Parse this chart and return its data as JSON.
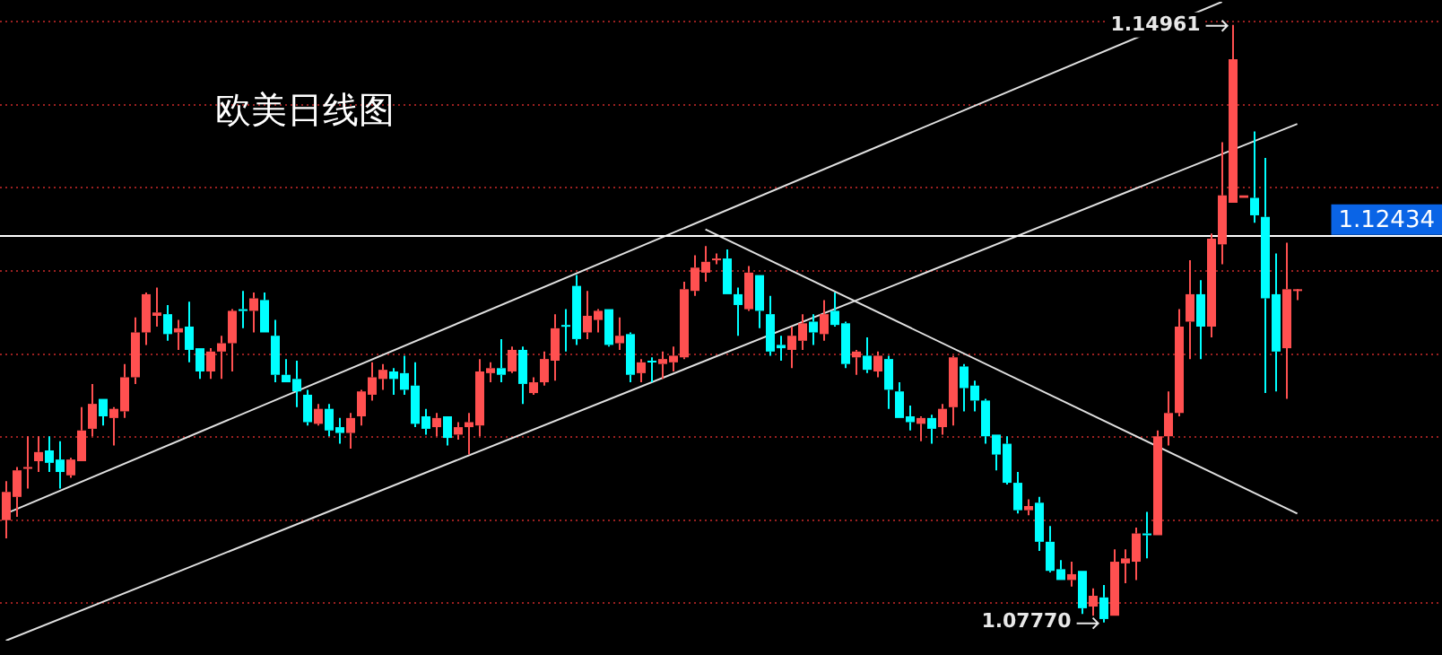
{
  "chart_data": {
    "type": "candlestick",
    "title": "欧美日线图",
    "categories": [
      null,
      null,
      null,
      null,
      null,
      null,
      null,
      null,
      null,
      null,
      null,
      null,
      null,
      null,
      null,
      null,
      null,
      null,
      null,
      null,
      null,
      null,
      null,
      null,
      null,
      null,
      null,
      null,
      null,
      null,
      null,
      null,
      null,
      null,
      null,
      null,
      null,
      null,
      null,
      null,
      null,
      null,
      null,
      null,
      null,
      null,
      null,
      null,
      null,
      null,
      null,
      null,
      null,
      null,
      null,
      null,
      null,
      null,
      null,
      null,
      null,
      null,
      null,
      null,
      null,
      null,
      null,
      null,
      null,
      null,
      null,
      null,
      null,
      null,
      null,
      null,
      null,
      null,
      null,
      null,
      null,
      null,
      null,
      null,
      null,
      null,
      null,
      null,
      null,
      null,
      null,
      null,
      null,
      null,
      null,
      null,
      null,
      null,
      null,
      null,
      null,
      null,
      null,
      null,
      null,
      null,
      null,
      null,
      null,
      null,
      null,
      null,
      null,
      null,
      null,
      null,
      null,
      null,
      null,
      null,
      null
    ],
    "ohlc": [
      [
        1.09,
        1.0947,
        1.0878,
        1.0934
      ],
      [
        1.0928,
        1.0964,
        1.0904,
        1.096
      ],
      [
        1.0962,
        1.1001,
        1.0938,
        1.0964
      ],
      [
        1.0971,
        1.1001,
        1.0958,
        1.0982
      ],
      [
        1.0984,
        1.1001,
        1.0958,
        1.0969
      ],
      [
        1.0973,
        1.0995,
        1.0938,
        1.0958
      ],
      [
        1.0954,
        1.0975,
        1.0951,
        1.0973
      ],
      [
        1.0971,
        1.1036,
        1.0971,
        1.1008
      ],
      [
        1.101,
        1.1064,
        1.1001,
        1.104
      ],
      [
        1.1046,
        1.1046,
        1.1014,
        1.1025
      ],
      [
        1.1023,
        1.1036,
        1.099,
        1.1034
      ],
      [
        1.1031,
        1.1088,
        1.1023,
        1.1072
      ],
      [
        1.1072,
        1.1144,
        1.1064,
        1.1126
      ],
      [
        1.1126,
        1.1174,
        1.1111,
        1.1172
      ],
      [
        1.1146,
        1.118,
        1.1133,
        1.115
      ],
      [
        1.1148,
        1.1159,
        1.1116,
        1.1124
      ],
      [
        1.1126,
        1.1141,
        1.1105,
        1.1131
      ],
      [
        1.1133,
        1.1163,
        1.109,
        1.1105
      ],
      [
        1.1107,
        1.1107,
        1.107,
        1.1079
      ],
      [
        1.1079,
        1.1107,
        1.107,
        1.1103
      ],
      [
        1.1103,
        1.1122,
        1.107,
        1.1113
      ],
      [
        1.1113,
        1.1154,
        1.1079,
        1.1152
      ],
      [
        1.1154,
        1.1176,
        1.1131,
        1.1152
      ],
      [
        1.1152,
        1.1174,
        1.1126,
        1.1167
      ],
      [
        1.1165,
        1.1174,
        1.1126,
        1.1126
      ],
      [
        1.1122,
        1.1141,
        1.1066,
        1.1075
      ],
      [
        1.1075,
        1.1094,
        1.1066,
        1.1066
      ],
      [
        1.107,
        1.1092,
        1.1036,
        1.1055
      ],
      [
        1.1051,
        1.1057,
        1.1014,
        1.1018
      ],
      [
        1.1016,
        1.104,
        1.1014,
        1.1034
      ],
      [
        1.1034,
        1.104,
        1.1001,
        1.1008
      ],
      [
        1.1012,
        1.1023,
        1.0992,
        1.1005
      ],
      [
        1.1005,
        1.1029,
        1.0986,
        1.1023
      ],
      [
        1.1025,
        1.1057,
        1.1014,
        1.1055
      ],
      [
        1.1051,
        1.109,
        1.1044,
        1.1072
      ],
      [
        1.107,
        1.1088,
        1.1057,
        1.1081
      ],
      [
        1.1079,
        1.1083,
        1.1051,
        1.107
      ],
      [
        1.1077,
        1.1098,
        1.1051,
        1.1057
      ],
      [
        1.1062,
        1.109,
        1.1012,
        1.1016
      ],
      [
        1.1025,
        1.1034,
        1.1003,
        1.101
      ],
      [
        1.1012,
        1.1029,
        1.1001,
        1.1023
      ],
      [
        1.1025,
        1.1025,
        1.099,
        1.0999
      ],
      [
        1.1003,
        1.1018,
        1.0997,
        1.1012
      ],
      [
        1.1012,
        1.1029,
        1.0979,
        1.1018
      ],
      [
        1.1014,
        1.1094,
        1.1001,
        1.1079
      ],
      [
        1.1077,
        1.109,
        1.1066,
        1.1083
      ],
      [
        1.1083,
        1.1118,
        1.1066,
        1.1075
      ],
      [
        1.1079,
        1.1109,
        1.1077,
        1.1105
      ],
      [
        1.1105,
        1.1109,
        1.104,
        1.1064
      ],
      [
        1.1053,
        1.1072,
        1.1051,
        1.1066
      ],
      [
        1.1066,
        1.1103,
        1.1062,
        1.1094
      ],
      [
        1.1092,
        1.1148,
        1.1068,
        1.1131
      ],
      [
        1.1135,
        1.1154,
        1.1103,
        1.1133
      ],
      [
        1.1182,
        1.1195,
        1.1111,
        1.1118
      ],
      [
        1.1126,
        1.1176,
        1.1118,
        1.1146
      ],
      [
        1.1141,
        1.1154,
        1.1126,
        1.1152
      ],
      [
        1.1154,
        1.1154,
        1.1109,
        1.1111
      ],
      [
        1.1113,
        1.1144,
        1.1105,
        1.1122
      ],
      [
        1.1124,
        1.1126,
        1.1066,
        1.1075
      ],
      [
        1.1077,
        1.1094,
        1.1066,
        1.109
      ],
      [
        1.1092,
        1.1096,
        1.1066,
        1.109
      ],
      [
        1.1088,
        1.1103,
        1.107,
        1.1094
      ],
      [
        1.109,
        1.1109,
        1.1079,
        1.1098
      ],
      [
        1.1096,
        1.1187,
        1.1094,
        1.1178
      ],
      [
        1.1176,
        1.1219,
        1.117,
        1.1204
      ],
      [
        1.1198,
        1.123,
        1.1187,
        1.1211
      ],
      [
        1.1213,
        1.1221,
        1.1208,
        1.1215
      ],
      [
        1.1215,
        1.1226,
        1.1172,
        1.1172
      ],
      [
        1.1172,
        1.118,
        1.1122,
        1.1159
      ],
      [
        1.1154,
        1.1206,
        1.1152,
        1.1198
      ],
      [
        1.1195,
        1.1195,
        1.1131,
        1.1152
      ],
      [
        1.1148,
        1.117,
        1.1098,
        1.1103
      ],
      [
        1.1111,
        1.1122,
        1.1092,
        1.1107
      ],
      [
        1.1105,
        1.1133,
        1.1083,
        1.1122
      ],
      [
        1.1116,
        1.1148,
        1.1105,
        1.1137
      ],
      [
        1.1139,
        1.1148,
        1.1111,
        1.1126
      ],
      [
        1.1124,
        1.1165,
        1.1116,
        1.1148
      ],
      [
        1.1152,
        1.1174,
        1.1133,
        1.1135
      ],
      [
        1.1137,
        1.1139,
        1.1083,
        1.1088
      ],
      [
        1.1096,
        1.1105,
        1.1075,
        1.1103
      ],
      [
        1.1098,
        1.112,
        1.1077,
        1.1081
      ],
      [
        1.1079,
        1.1103,
        1.1072,
        1.1098
      ],
      [
        1.1094,
        1.1098,
        1.1034,
        1.1057
      ],
      [
        1.1055,
        1.1066,
        1.1023,
        1.1023
      ],
      [
        1.1025,
        1.1038,
        1.1008,
        1.1018
      ],
      [
        1.1016,
        1.1025,
        1.0995,
        1.1023
      ],
      [
        1.1023,
        1.1027,
        1.0992,
        1.101
      ],
      [
        1.1012,
        1.104,
        1.1003,
        1.1034
      ],
      [
        1.1036,
        1.1098,
        1.1014,
        1.1096
      ],
      [
        1.1085,
        1.1088,
        1.1031,
        1.1059
      ],
      [
        1.1062,
        1.1068,
        1.1031,
        1.1044
      ],
      [
        1.1044,
        1.1046,
        1.0992,
        1.1001
      ],
      [
        1.1003,
        1.1003,
        1.096,
        1.0979
      ],
      [
        1.0992,
        1.1001,
        1.0943,
        1.0945
      ],
      [
        1.0945,
        1.0958,
        1.0908,
        1.0912
      ],
      [
        1.0912,
        1.0925,
        1.0906,
        1.0917
      ],
      [
        1.0921,
        1.0928,
        1.0863,
        1.0874
      ],
      [
        1.0874,
        1.0893,
        1.0837,
        1.0839
      ],
      [
        1.0841,
        1.0852,
        1.0828,
        1.0828
      ],
      [
        1.0828,
        1.085,
        1.082,
        1.0835
      ],
      [
        1.0839,
        1.0839,
        1.0787,
        1.0794
      ],
      [
        1.0796,
        1.0818,
        1.0785,
        1.0809
      ],
      [
        1.0807,
        1.0822,
        1.0777,
        1.0781
      ],
      [
        1.0785,
        1.0865,
        1.0785,
        1.085
      ],
      [
        1.0848,
        1.0865,
        1.0824,
        1.0854
      ],
      [
        1.085,
        1.0891,
        1.0828,
        1.0884
      ],
      [
        1.0884,
        1.091,
        1.0854,
        1.0882
      ],
      [
        1.0882,
        1.1008,
        1.0882,
        1.1001
      ],
      [
        1.1001,
        1.1055,
        1.099,
        1.1029
      ],
      [
        1.1029,
        1.1154,
        1.1025,
        1.1133
      ],
      [
        1.1139,
        1.1213,
        1.1094,
        1.1172
      ],
      [
        1.1172,
        1.1189,
        1.1094,
        1.1133
      ],
      [
        1.1133,
        1.1245,
        1.112,
        1.1239
      ],
      [
        1.1232,
        1.1355,
        1.1208,
        1.1291
      ],
      [
        1.1282,
        1.14961,
        1.1282,
        1.1455
      ],
      [
        1.1288,
        1.1291,
        1.1288,
        1.1291
      ],
      [
        1.1288,
        1.1368,
        1.1258,
        1.1267
      ],
      [
        1.1265,
        1.1336,
        1.1053,
        1.1167
      ],
      [
        1.1172,
        1.1221,
        1.1055,
        1.1103
      ],
      [
        1.1107,
        1.1234,
        1.1046,
        1.1178
      ],
      [
        1.1178,
        1.1178,
        1.1165,
        1.1178
      ]
    ],
    "series": [
      {
        "type": "line",
        "color": "#e0e0e0",
        "values": [
          1.0908,
          null,
          null,
          null,
          null,
          null,
          null,
          null,
          null,
          null,
          null,
          null,
          null,
          null,
          null,
          null,
          null,
          null,
          null,
          null,
          null,
          null,
          null,
          null,
          null,
          null,
          null,
          null,
          null,
          null,
          null,
          null,
          null,
          null,
          null,
          null,
          null,
          null,
          null,
          null,
          null,
          null,
          null,
          null,
          null,
          null,
          null,
          null,
          null,
          null,
          null,
          null,
          null,
          null,
          null,
          null,
          null,
          null,
          null,
          null,
          null,
          null,
          null,
          null,
          null,
          null,
          null,
          null,
          null,
          null,
          null,
          null,
          null,
          null,
          null,
          null,
          null,
          null,
          null,
          null,
          null,
          null,
          null,
          null,
          null,
          null,
          null,
          null,
          null,
          null,
          null,
          null,
          null,
          null,
          null,
          null,
          null,
          null,
          null,
          null,
          null,
          null,
          null,
          null,
          null,
          null,
          null,
          null,
          null,
          null,
          null,
          null,
          null,
          1.1524,
          null,
          null,
          null,
          null,
          null,
          null,
          null
        ]
      },
      {
        "type": "line",
        "color": "#e0e0e0",
        "values": [
          1.0755,
          null,
          null,
          null,
          null,
          null,
          null,
          null,
          null,
          null,
          null,
          null,
          null,
          null,
          null,
          null,
          null,
          null,
          null,
          null,
          null,
          null,
          null,
          null,
          null,
          null,
          null,
          null,
          null,
          null,
          null,
          null,
          null,
          null,
          null,
          null,
          null,
          null,
          null,
          null,
          null,
          null,
          null,
          null,
          null,
          null,
          null,
          null,
          null,
          null,
          null,
          null,
          null,
          null,
          null,
          null,
          null,
          null,
          null,
          null,
          null,
          null,
          null,
          null,
          null,
          null,
          null,
          null,
          null,
          null,
          null,
          null,
          null,
          null,
          null,
          null,
          null,
          null,
          null,
          null,
          null,
          null,
          null,
          null,
          null,
          null,
          null,
          null,
          null,
          null,
          null,
          null,
          null,
          null,
          null,
          null,
          null,
          null,
          null,
          null,
          null,
          null,
          null,
          null,
          null,
          null,
          null,
          null,
          null,
          null,
          null,
          null,
          null,
          null,
          null,
          null,
          null,
          null,
          null,
          null,
          1.1377
        ]
      },
      {
        "type": "line",
        "color": "#e0e0e0",
        "values": [
          null,
          null,
          null,
          null,
          null,
          null,
          null,
          null,
          null,
          null,
          null,
          null,
          null,
          null,
          null,
          null,
          null,
          null,
          null,
          null,
          null,
          null,
          null,
          null,
          null,
          null,
          null,
          null,
          null,
          null,
          null,
          null,
          null,
          null,
          null,
          null,
          null,
          null,
          null,
          null,
          null,
          null,
          null,
          null,
          null,
          null,
          null,
          null,
          null,
          null,
          null,
          null,
          null,
          null,
          null,
          null,
          null,
          null,
          null,
          null,
          null,
          null,
          null,
          null,
          null,
          1.125,
          null,
          null,
          null,
          null,
          null,
          null,
          null,
          null,
          null,
          null,
          null,
          null,
          null,
          null,
          null,
          null,
          null,
          null,
          null,
          null,
          null,
          null,
          null,
          null,
          null,
          null,
          null,
          null,
          null,
          null,
          null,
          null,
          null,
          null,
          null,
          null,
          null,
          null,
          null,
          null,
          null,
          null,
          null,
          null,
          null,
          null,
          null,
          null,
          null,
          null,
          null,
          null,
          null,
          null,
          1.0908
        ]
      }
    ],
    "yticks": [
      {
        "value": 1.08,
        "label": null
      },
      {
        "value": 1.09,
        "label": null
      },
      {
        "value": 1.1,
        "label": null
      },
      {
        "value": 1.11,
        "label": null
      },
      {
        "value": 1.12,
        "label": null
      },
      {
        "value": 1.13,
        "label": null
      },
      {
        "value": 1.14,
        "label": null
      },
      {
        "value": 1.15,
        "label": null
      }
    ],
    "grid": "y",
    "tick_labels": false,
    "marker": "none",
    "line_style": "solid",
    "ref_lines": [
      {
        "axis": "y",
        "value": 1.12434,
        "label": "1.12434",
        "color": "#ffffff"
      }
    ],
    "annotations": [
      {
        "text": "1.14961",
        "y": 1.14961
      },
      "1.07770"
    ]
  }
}
